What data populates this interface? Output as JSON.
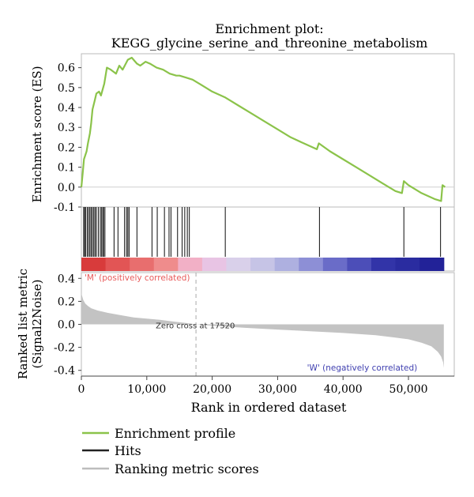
{
  "chart_data": {
    "type": "line",
    "title_line1": "Enrichment plot:",
    "title_line2": "KEGG_glycine_serine_and_threonine_metabolism",
    "xlabel": "Rank in ordered dataset",
    "xlim": [
      0,
      57000
    ],
    "x_ticks": [
      0,
      10000,
      20000,
      30000,
      40000,
      50000
    ],
    "x_tick_labels": [
      "0",
      "10,000",
      "20,000",
      "30,000",
      "40,000",
      "50,000"
    ],
    "es_panel": {
      "ylabel": "Enrichment score (ES)",
      "ylim": [
        -0.1,
        0.67
      ],
      "y_ticks": [
        0.6,
        0.5,
        0.4,
        0.3,
        0.2,
        0.1,
        0.0,
        -0.1
      ],
      "y_tick_labels": [
        "0.6",
        "0.5",
        "0.4",
        "0.3",
        "0.2",
        "0.1",
        "0.0",
        "-0.1"
      ],
      "color": "#8bc34a",
      "x": [
        0,
        200,
        400,
        800,
        1000,
        1300,
        1500,
        1700,
        2000,
        2300,
        2700,
        3000,
        3500,
        3900,
        4500,
        5300,
        5800,
        6300,
        7100,
        7700,
        8500,
        9000,
        9800,
        10500,
        11500,
        12500,
        13500,
        14500,
        15000,
        16000,
        17000,
        18000,
        20000,
        22000,
        24000,
        26000,
        28000,
        30000,
        32000,
        34000,
        36000,
        36300,
        38000,
        40000,
        42000,
        44000,
        46000,
        48000,
        49000,
        49300,
        50000,
        52000,
        54000,
        55000,
        55200,
        55600
      ],
      "y": [
        0.0,
        0.07,
        0.14,
        0.18,
        0.22,
        0.27,
        0.32,
        0.39,
        0.43,
        0.47,
        0.48,
        0.46,
        0.52,
        0.6,
        0.59,
        0.57,
        0.61,
        0.59,
        0.64,
        0.65,
        0.62,
        0.61,
        0.63,
        0.62,
        0.6,
        0.59,
        0.57,
        0.56,
        0.56,
        0.55,
        0.54,
        0.52,
        0.48,
        0.45,
        0.41,
        0.37,
        0.33,
        0.29,
        0.25,
        0.22,
        0.19,
        0.22,
        0.18,
        0.14,
        0.1,
        0.06,
        0.02,
        -0.02,
        -0.03,
        0.03,
        0.01,
        -0.03,
        -0.06,
        -0.07,
        0.01,
        0.0
      ]
    },
    "hits": {
      "label": "Hits",
      "color": "#222222",
      "x": [
        350,
        500,
        650,
        900,
        1100,
        1300,
        1500,
        1700,
        1900,
        2100,
        2300,
        2600,
        2900,
        3100,
        3300,
        3400,
        3600,
        5000,
        5600,
        6600,
        6900,
        7100,
        7300,
        8500,
        10800,
        11600,
        12700,
        13400,
        13700,
        14700,
        15400,
        15800,
        16200,
        16500,
        22000,
        36400,
        49300,
        54900
      ]
    },
    "heat_bar": {
      "colors": [
        "#d83b3b",
        "#e25555",
        "#e86e6e",
        "#ef8c8c",
        "#f2b0c6",
        "#e8c4e4",
        "#d9d0ea",
        "#c6c4e6",
        "#aeb0e0",
        "#8d8fd6",
        "#6a6cc8",
        "#4c4eb8",
        "#3234a8",
        "#2a2ca0",
        "#222298"
      ]
    },
    "ranked_panel": {
      "ylabel_line1": "Ranked list metric",
      "ylabel_line2": "(Signal2Noise)",
      "ylim": [
        -0.45,
        0.45
      ],
      "y_ticks": [
        0.4,
        0.2,
        0.0,
        -0.2,
        -0.4
      ],
      "y_tick_labels": [
        "0.4",
        "0.2",
        "0.0",
        "-0.2",
        "-0.4"
      ],
      "color": "#c3c3c3",
      "x": [
        0,
        100,
        300,
        600,
        1000,
        1500,
        2500,
        4000,
        6000,
        8000,
        10000,
        12000,
        14000,
        16000,
        17520,
        20000,
        25000,
        30000,
        35000,
        40000,
        45000,
        48000,
        50000,
        52000,
        53500,
        54500,
        55000,
        55300,
        55400
      ],
      "y": [
        0.27,
        0.25,
        0.21,
        0.18,
        0.16,
        0.14,
        0.12,
        0.1,
        0.08,
        0.06,
        0.05,
        0.04,
        0.025,
        0.012,
        0.0,
        -0.012,
        -0.03,
        -0.045,
        -0.06,
        -0.075,
        -0.095,
        -0.115,
        -0.13,
        -0.16,
        -0.19,
        -0.24,
        -0.28,
        -0.33,
        -0.38
      ],
      "zero_cross_label": "Zero cross at 17520",
      "zero_cross_x": 17520,
      "positive_label": "'M' (positively correlated)",
      "negative_label": "'W' (negatively correlated)",
      "positive_color": "#e85b5b",
      "negative_color": "#4040b0"
    },
    "legend": [
      {
        "label": "Enrichment profile",
        "color": "#8bc34a"
      },
      {
        "label": "Hits",
        "color": "#222222"
      },
      {
        "label": "Ranking metric scores",
        "color": "#bdbdbd"
      }
    ]
  }
}
